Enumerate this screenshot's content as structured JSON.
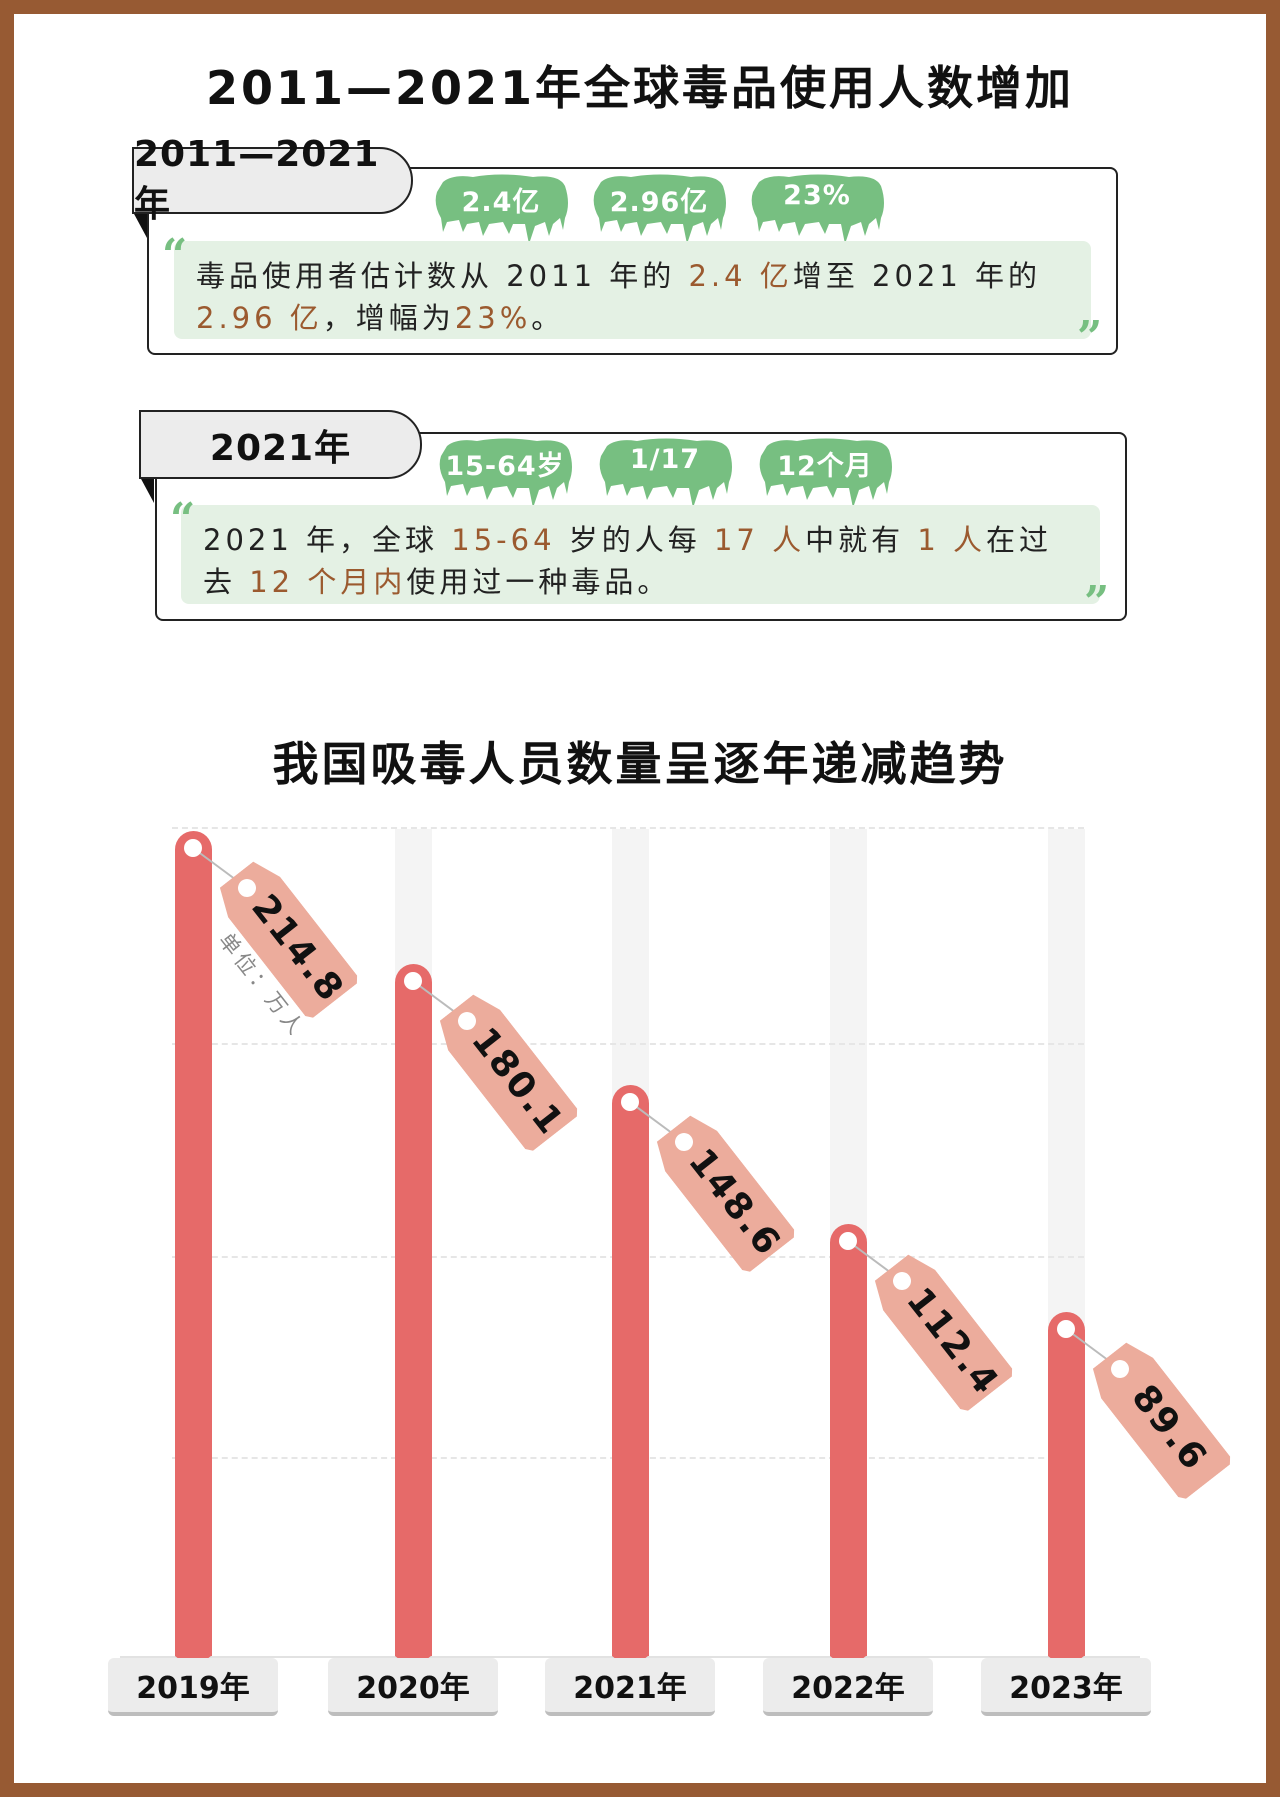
{
  "section1": {
    "title": "2011—2021年全球毒品使用人数增加",
    "tab": "2011—2021年",
    "badges": [
      "2.4亿",
      "2.96亿",
      "23%"
    ],
    "lines": [
      [
        {
          "t": "毒品使用者估计数从 2011 年的 "
        },
        {
          "t": "2.4 亿",
          "hl": true
        },
        {
          "t": "增至 2021 年的"
        }
      ],
      [
        {
          "t": "2.96 亿",
          "hl": true
        },
        {
          "t": "，增幅为"
        },
        {
          "t": "23%",
          "hl": true
        },
        {
          "t": "。"
        }
      ]
    ]
  },
  "section2": {
    "tab": "2021年",
    "badges": [
      "15-64岁",
      "1/17",
      "12个月"
    ],
    "lines": [
      [
        {
          "t": "2021 年，全球 "
        },
        {
          "t": "15-64",
          "hl": true
        },
        {
          "t": " 岁的人每 "
        },
        {
          "t": "17 人",
          "hl": true
        },
        {
          "t": "中就有 "
        },
        {
          "t": "1 人",
          "hl": true
        },
        {
          "t": "在过"
        }
      ],
      [
        {
          "t": "去 "
        },
        {
          "t": "12 个月内",
          "hl": true
        },
        {
          "t": "使用过一种毒品。"
        }
      ]
    ]
  },
  "colors": {
    "border": "#975a33",
    "bar": "#e66a69",
    "tag": "#ecac9c",
    "badge": "#77bf81",
    "quote_bg": "#e4f1e4",
    "highlight": "#9b5a2f"
  },
  "chart_data": {
    "type": "bar",
    "title": "我国吸毒人员数量呈逐年递减趋势",
    "unit_label": "单位：万人",
    "categories": [
      "2019年",
      "2020年",
      "2021年",
      "2022年",
      "2023年"
    ],
    "values": [
      214.8,
      180.1,
      148.6,
      112.4,
      89.6
    ],
    "value_labels": [
      "214.8",
      "180.1",
      "148.6",
      "112.4",
      "89.6"
    ],
    "ylim": [
      0,
      214.8
    ],
    "grid": true
  }
}
